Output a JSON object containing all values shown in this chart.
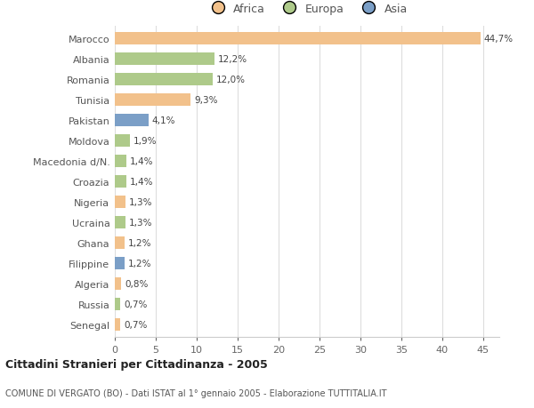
{
  "countries": [
    "Marocco",
    "Albania",
    "Romania",
    "Tunisia",
    "Pakistan",
    "Moldova",
    "Macedonia d/N.",
    "Croazia",
    "Nigeria",
    "Ucraina",
    "Ghana",
    "Filippine",
    "Algeria",
    "Russia",
    "Senegal"
  ],
  "values": [
    44.7,
    12.2,
    12.0,
    9.3,
    4.1,
    1.9,
    1.4,
    1.4,
    1.3,
    1.3,
    1.2,
    1.2,
    0.8,
    0.7,
    0.7
  ],
  "labels": [
    "44,7%",
    "12,2%",
    "12,0%",
    "9,3%",
    "4,1%",
    "1,9%",
    "1,4%",
    "1,4%",
    "1,3%",
    "1,3%",
    "1,2%",
    "1,2%",
    "0,8%",
    "0,7%",
    "0,7%"
  ],
  "colors": [
    "#F2C18B",
    "#AECA8A",
    "#AECA8A",
    "#F2C18B",
    "#7B9FC7",
    "#AECA8A",
    "#AECA8A",
    "#AECA8A",
    "#F2C18B",
    "#AECA8A",
    "#F2C18B",
    "#7B9FC7",
    "#F2C18B",
    "#AECA8A",
    "#F2C18B"
  ],
  "legend_labels": [
    "Africa",
    "Europa",
    "Asia"
  ],
  "legend_colors": [
    "#F2C18B",
    "#AECA8A",
    "#7B9FC7"
  ],
  "title": "Cittadini Stranieri per Cittadinanza - 2005",
  "subtitle": "COMUNE DI VERGATO (BO) - Dati ISTAT al 1° gennaio 2005 - Elaborazione TUTTITALIA.IT",
  "xlim": [
    0,
    47
  ],
  "xticks": [
    0,
    5,
    10,
    15,
    20,
    25,
    30,
    35,
    40,
    45
  ],
  "background_color": "#ffffff",
  "plot_bg_color": "#ffffff",
  "grid_color": "#dddddd",
  "bar_height": 0.6
}
